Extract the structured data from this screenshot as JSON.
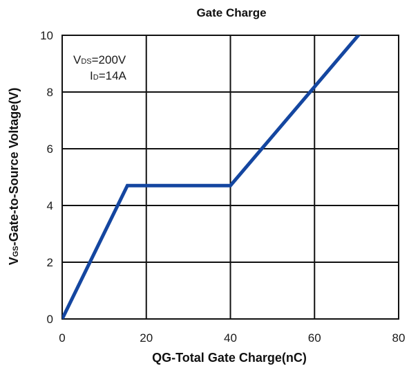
{
  "chart_data": {
    "type": "line",
    "title": "Gate Charge",
    "xlabel": "QG-Total Gate Charge(nC)",
    "ylabel": {
      "main": "V",
      "sub": "GS",
      "rest": "-Gate-to-Source Voltage(V)"
    },
    "xlim": [
      0,
      80
    ],
    "ylim": [
      0,
      10
    ],
    "xticks": [
      0,
      20,
      40,
      60,
      80
    ],
    "yticks": [
      0,
      2,
      4,
      6,
      8,
      10
    ],
    "grid": true,
    "annotations": [
      {
        "main": "V",
        "sub": "DS",
        "rest": "=200V"
      },
      {
        "main": "I",
        "sub": "D",
        "rest": "=14A"
      }
    ],
    "series": [
      {
        "color": "#1446a0",
        "x": [
          0,
          15.5,
          40,
          71
        ],
        "y": [
          0,
          4.7,
          4.7,
          10.1
        ]
      }
    ]
  }
}
